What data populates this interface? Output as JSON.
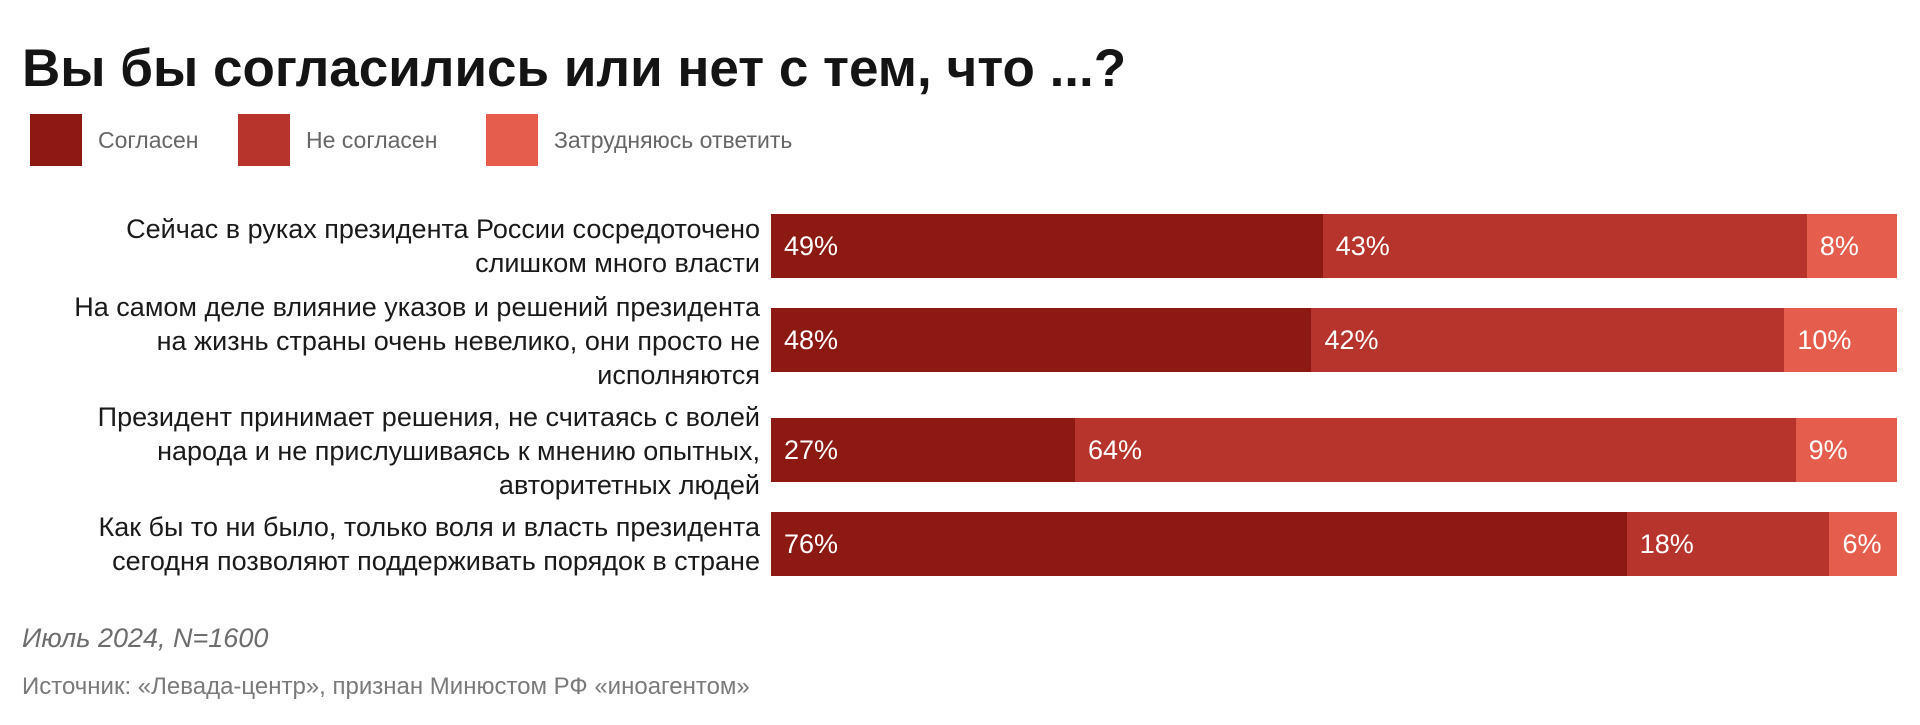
{
  "chart_data": {
    "type": "bar",
    "orientation": "horizontal",
    "stacked": true,
    "title": "Вы бы согласились или нет с тем, что ...?",
    "unit": "%",
    "xlim": [
      0,
      100
    ],
    "categories": [
      "Сейчас в руках президента России сосредоточено\nслишком много власти",
      "На самом деле влияние указов и решений президента\nна жизнь страны очень невелико, они просто не\nисполняются",
      "Президент принимает решения, не считаясь с волей\nнарода и не прислушиваясь к мнению опытных,\nавторитетных людей",
      "Как бы то ни было, только воля и власть президента\nсегодня позволяют поддерживать порядок в стране"
    ],
    "series": [
      {
        "name": "Согласен",
        "color": "#8c1a13",
        "values": [
          49,
          48,
          27,
          76
        ]
      },
      {
        "name": "Не согласен",
        "color": "#b7342c",
        "values": [
          43,
          42,
          64,
          18
        ]
      },
      {
        "name": "Затрудняюсь ответить",
        "color": "#e55e4d",
        "values": [
          8,
          10,
          9,
          6
        ]
      }
    ],
    "legend_position": "top-left"
  },
  "footer": {
    "date": "Июль 2024, N=1600",
    "source": "Источник: «Левада-центр», признан Минюстом РФ «иноагентом»"
  }
}
